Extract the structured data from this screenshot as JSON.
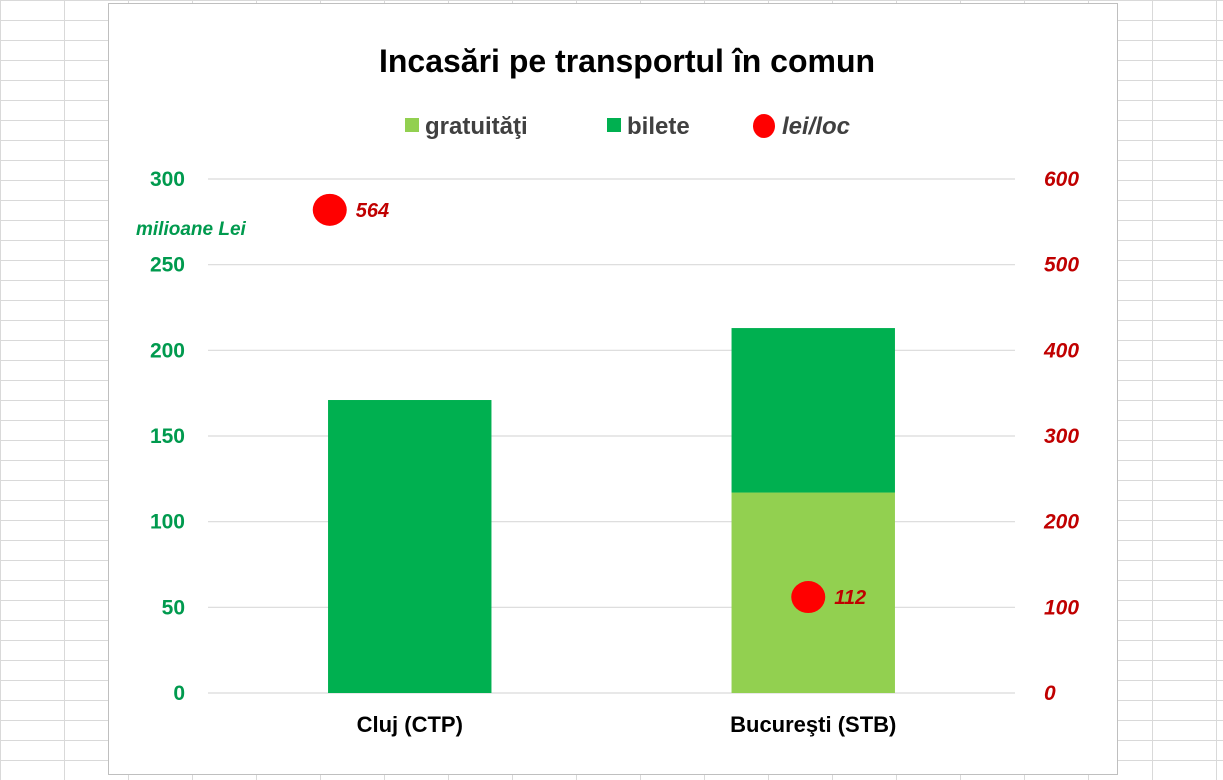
{
  "chart_data": {
    "type": "bar",
    "stacked": true,
    "title": "Incasări pe transportul în comun",
    "categories": [
      "Cluj (CTP)",
      "Bucureşti (STB)"
    ],
    "series": [
      {
        "name": "gratuităţi",
        "values": [
          0,
          117
        ],
        "color": "#92d050",
        "axis": "left",
        "kind": "bar"
      },
      {
        "name": "bilete",
        "values": [
          171,
          96
        ],
        "color": "#00b050",
        "axis": "left",
        "kind": "bar"
      },
      {
        "name": "lei/loc",
        "values": [
          564,
          112
        ],
        "labels": [
          "564",
          "112"
        ],
        "color": "#ff0000",
        "axis": "right",
        "kind": "scatter"
      }
    ],
    "y_left": {
      "label": "milioane Lei",
      "ylim": [
        0,
        300
      ],
      "ticks": [
        0,
        50,
        100,
        150,
        200,
        250,
        300
      ],
      "tick_labels": [
        "0",
        "50",
        "100",
        "150",
        "200",
        "250",
        "300"
      ],
      "color": "#009a4e"
    },
    "y_right": {
      "ylim": [
        0,
        600
      ],
      "ticks": [
        0,
        100,
        200,
        300,
        400,
        500,
        600
      ],
      "tick_labels": [
        "0",
        "100",
        "200",
        "300",
        "400",
        "500",
        "600"
      ],
      "color": "#c00000"
    },
    "legend": {
      "position": "top",
      "items": [
        "gratuităţi",
        "bilete",
        "lei/loc"
      ]
    },
    "grid": true
  }
}
